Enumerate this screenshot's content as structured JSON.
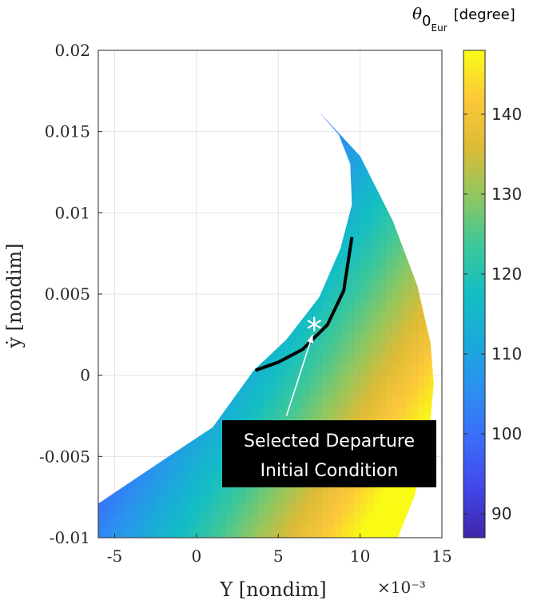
{
  "chart_data": {
    "type": "scatter",
    "title": "",
    "xlabel": "Y [nondim]",
    "x_exponent": "×10⁻³",
    "ylabel": "ẏ [nondim]",
    "xlim": [
      -6,
      15
    ],
    "ylim": [
      -0.01,
      0.02
    ],
    "x_ticks": [
      -5,
      0,
      5,
      10,
      15
    ],
    "x_tick_labels": [
      "-5",
      "0",
      "5",
      "10",
      "15"
    ],
    "y_ticks": [
      -0.01,
      -0.005,
      0,
      0.005,
      0.01,
      0.015,
      0.02
    ],
    "y_tick_labels": [
      "-0.01",
      "-0.005",
      "0",
      "0.005",
      "0.01",
      "0.015",
      "0.02"
    ],
    "grid": true,
    "colorbar": {
      "title_symbol": "θ",
      "title_subscript": "0",
      "title_subsubscript": "Eur",
      "title_unit": "[degree]",
      "range": [
        87,
        148
      ],
      "ticks": [
        90,
        100,
        110,
        120,
        130,
        140
      ],
      "tick_labels": [
        "90",
        "100",
        "110",
        "120",
        "130",
        "140"
      ]
    },
    "region": {
      "description_in_data_units": "feasible departure region",
      "upper_edge": [
        [
          -6,
          -0.0079
        ],
        [
          -2,
          -0.0052
        ],
        [
          1,
          -0.0032
        ],
        [
          3.5,
          0.0003
        ],
        [
          5.5,
          0.0022
        ],
        [
          7.5,
          0.0048
        ],
        [
          8.8,
          0.0078
        ],
        [
          9.5,
          0.0105
        ],
        [
          9.4,
          0.013
        ],
        [
          8.7,
          0.0148
        ],
        [
          7.5,
          0.0162
        ]
      ],
      "lower_edge": [
        [
          7.5,
          0.0162
        ],
        [
          10,
          0.0135
        ],
        [
          12,
          0.0095
        ],
        [
          13.5,
          0.0055
        ],
        [
          14.3,
          0.002
        ],
        [
          14.5,
          -0.0005
        ],
        [
          14.2,
          -0.004
        ],
        [
          13.3,
          -0.0075
        ],
        [
          12.3,
          -0.01
        ],
        [
          -6,
          -0.01
        ]
      ]
    },
    "selected_curve": [
      [
        3.6,
        0.0003
      ],
      [
        5,
        0.0008
      ],
      [
        6.5,
        0.0016
      ],
      [
        8,
        0.0031
      ],
      [
        9,
        0.0052
      ],
      [
        9.5,
        0.0085
      ]
    ],
    "selected_point": {
      "x": 7.2,
      "y": 0.0032
    },
    "annotation": {
      "lines": [
        "Selected Departure",
        "Initial Condition"
      ],
      "arrow_from": [
        5.5,
        -0.0025
      ],
      "arrow_to": [
        7.1,
        0.0025
      ]
    }
  }
}
